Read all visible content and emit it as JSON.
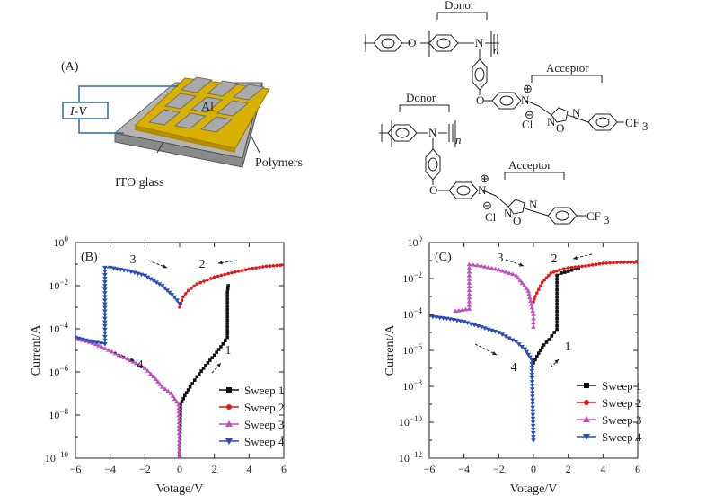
{
  "panel_labels": {
    "a": "(A)",
    "b": "(B)",
    "c": "(C)"
  },
  "device": {
    "iv": "I-V",
    "al": "Al",
    "polymers": "Polymers",
    "ito": "ITO glass"
  },
  "chem": {
    "donor": "Donor",
    "acceptor": "Acceptor",
    "o": "O",
    "n": "N",
    "n_sub": "n",
    "cl": "Cl",
    "plus": "⊕",
    "minus": "⊖",
    "cf3": "CF",
    "cf3_sub": "3"
  },
  "colors": {
    "sweep1": "#111111",
    "sweep2": "#e31a1c",
    "sweep3": "#c050c0",
    "sweep4": "#2a4db0"
  },
  "chart_data": [
    {
      "panel": "B",
      "type": "line",
      "xlabel": "Votage/V",
      "ylabel": "Current/A",
      "xlim": [
        -6,
        6
      ],
      "xticks": [
        "-6",
        "-4",
        "-2",
        "0",
        "2",
        "4",
        "6"
      ],
      "yscale": "log",
      "ylim_exp": [
        -10,
        0
      ],
      "yticks_exp": [
        -10,
        -8,
        -6,
        -4,
        -2,
        0
      ],
      "legend": "bottom-right",
      "annotations": [
        "1",
        "2",
        "3",
        "4"
      ],
      "series": [
        {
          "name": "Sweep 1",
          "marker": "square",
          "points": [
            [
              0,
              1e-10
            ],
            [
              0.05,
              3e-08
            ],
            [
              0.3,
              8e-08
            ],
            [
              0.6,
              2e-07
            ],
            [
              1.0,
              6e-07
            ],
            [
              1.5,
              2e-06
            ],
            [
              2.0,
              6e-06
            ],
            [
              2.5,
              2e-05
            ],
            [
              2.75,
              4e-05
            ],
            [
              2.75,
              0.005
            ],
            [
              2.8,
              0.01
            ]
          ]
        },
        {
          "name": "Sweep 2",
          "marker": "circle",
          "points": [
            [
              6,
              0.09
            ],
            [
              5,
              0.08
            ],
            [
              4,
              0.06
            ],
            [
              3,
              0.04
            ],
            [
              2,
              0.025
            ],
            [
              1,
              0.012
            ],
            [
              0.5,
              0.006
            ],
            [
              0.2,
              0.003
            ],
            [
              0,
              0.001
            ]
          ]
        },
        {
          "name": "Sweep 3",
          "marker": "triangle-up",
          "points": [
            [
              0,
              1e-10
            ],
            [
              -0.05,
              3e-08
            ],
            [
              -0.5,
              1e-07
            ],
            [
              -1.0,
              2e-07
            ],
            [
              -1.5,
              6e-07
            ],
            [
              -2.0,
              1.5e-06
            ],
            [
              -2.5,
              2.5e-06
            ],
            [
              -3.0,
              4e-06
            ],
            [
              -3.5,
              6e-06
            ],
            [
              -4.3,
              1.2e-05
            ],
            [
              -5,
              2.2e-05
            ],
            [
              -6,
              3.5e-05
            ]
          ]
        },
        {
          "name": "Sweep 4",
          "marker": "triangle-down",
          "points": [
            [
              -6,
              4e-05
            ],
            [
              -5,
              2.5e-05
            ],
            [
              -4.3,
              2e-05
            ],
            [
              -4.3,
              0.01
            ],
            [
              -4.3,
              0.07
            ],
            [
              -4,
              0.07
            ],
            [
              -3,
              0.05
            ],
            [
              -2,
              0.03
            ],
            [
              -1,
              0.01
            ],
            [
              -0.3,
              0.003
            ],
            [
              0,
              0.0015
            ]
          ]
        }
      ]
    },
    {
      "panel": "C",
      "type": "line",
      "xlabel": "Votage/V",
      "ylabel": "Current/A",
      "xlim": [
        -6,
        6
      ],
      "xticks": [
        "-6",
        "-4",
        "-2",
        "0",
        "2",
        "4",
        "6"
      ],
      "yscale": "log",
      "ylim_exp": [
        -12,
        0
      ],
      "yticks_exp": [
        -12,
        -10,
        -8,
        -6,
        -4,
        -2,
        0
      ],
      "legend": "bottom-right",
      "annotations": [
        "1",
        "2",
        "3",
        "4"
      ],
      "series": [
        {
          "name": "Sweep 1",
          "marker": "square",
          "points": [
            [
              0,
              2e-07
            ],
            [
              0.3,
              7e-07
            ],
            [
              0.6,
              2e-06
            ],
            [
              0.9,
              4e-06
            ],
            [
              1.2,
              1e-05
            ],
            [
              1.35,
              1.5e-05
            ],
            [
              1.35,
              0.015
            ],
            [
              1.6,
              0.02
            ],
            [
              2,
              0.025
            ],
            [
              2.6,
              0.04
            ]
          ]
        },
        {
          "name": "Sweep 2",
          "marker": "circle",
          "points": [
            [
              6,
              0.08
            ],
            [
              5,
              0.08
            ],
            [
              4,
              0.07
            ],
            [
              3,
              0.05
            ],
            [
              2,
              0.04
            ],
            [
              1.5,
              0.03
            ],
            [
              1,
              0.02
            ],
            [
              0.5,
              0.006
            ],
            [
              0.1,
              0.001
            ],
            [
              0,
              0.0005
            ]
          ]
        },
        {
          "name": "Sweep 3",
          "marker": "triangle-up",
          "points": [
            [
              0,
              2e-05
            ],
            [
              0,
              0.0001
            ],
            [
              -0.3,
              0.002
            ],
            [
              -1,
              0.015
            ],
            [
              -2,
              0.03
            ],
            [
              -3,
              0.05
            ],
            [
              -3.7,
              0.06
            ],
            [
              -3.7,
              0.0002
            ],
            [
              -4.5,
              0.00015
            ]
          ]
        },
        {
          "name": "Sweep 4",
          "marker": "triangle-down",
          "points": [
            [
              -6,
              8e-05
            ],
            [
              -5,
              6e-05
            ],
            [
              -4,
              4e-05
            ],
            [
              -3,
              2e-05
            ],
            [
              -2,
              1e-05
            ],
            [
              -1,
              3e-06
            ],
            [
              -0.5,
              1.2e-06
            ],
            [
              -0.1,
              3e-07
            ],
            [
              0,
              1e-11
            ]
          ]
        }
      ]
    }
  ]
}
